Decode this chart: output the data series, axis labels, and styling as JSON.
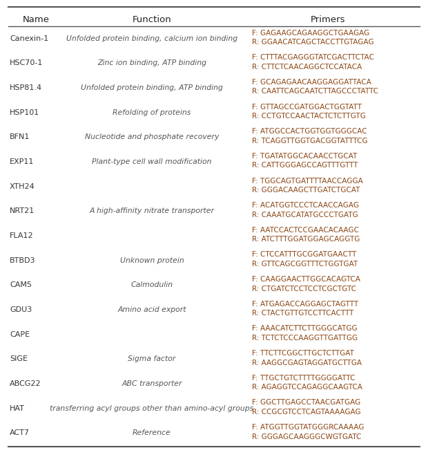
{
  "title_row": [
    "Name",
    "Function",
    "Primers"
  ],
  "rows": [
    {
      "name": "Canexin-1",
      "function": "Unfolded protein binding, calcium ion binding",
      "primers": [
        "F: GAGAAGCAGAAGGCTGAAGAG",
        "R: GGAACATCAGCTACCTTGTAGAG"
      ]
    },
    {
      "name": "HSC70-1",
      "function": "Zinc ion binding, ATP binding",
      "primers": [
        "F: CTTTACGAGGGTATCGACTTCTAC",
        "R: CTTCTCAACAGGCTCCATACA"
      ]
    },
    {
      "name": "HSP81.4",
      "function": "Unfolded protein binding, ATP binding",
      "primers": [
        "F: GCAGAGAACAAGGAGGATTACA",
        "R: CAATTCAGCAATCTTAGCCCTATTC"
      ]
    },
    {
      "name": "HSP101",
      "function": "Refolding of proteins",
      "primers": [
        "F: GTTAGCCGATGGACTGGTATT",
        "R: CCTGTCCAACTACTCTCTTGTG"
      ]
    },
    {
      "name": "BFN1",
      "function": "Nucleotide and phosphate recovery",
      "primers": [
        "F: ATGGCCACTGGTGGTGGGCAC",
        "R: TCAGGTTGGTGACGGTATTTCG"
      ]
    },
    {
      "name": "EXP11",
      "function": "Plant-type cell wall modification",
      "primers": [
        "F: TGATATGGCACAACCTGCAT",
        "R: CATTGGGAGCCAGTTTGTTT"
      ]
    },
    {
      "name": "XTH24",
      "function": "",
      "primers": [
        "F: TGGCAGTGATTTTAACCAGGA",
        "R: GGGACAAGCTTGATCTGCAT"
      ]
    },
    {
      "name": "NRT21",
      "function": "A high-affinity nitrate transporter",
      "primers": [
        "F: ACATGGTCCCTCAACCAGAG",
        "R: CAAATGCATATGCCCTGATG"
      ]
    },
    {
      "name": "FLA12",
      "function": "",
      "primers": [
        "F: AATCCACTCCGAACACAAGC",
        "R: ATCTTTGGATGGAGCAGGTG"
      ]
    },
    {
      "name": "BTBD3",
      "function": "Unknown protein",
      "primers": [
        "F: CTCCATTTGCGGATGAACTT",
        "R: GTTCAGCGGTTTCTGGTGAT"
      ]
    },
    {
      "name": "CAM5",
      "function": "Calmodulin",
      "primers": [
        "F: CAAGGAACTTGGCACAGTCA",
        "R: CTGATCTCCTCCTCGCTGTC"
      ]
    },
    {
      "name": "GDU3",
      "function": "Amino acid export",
      "primers": [
        "F: ATGAGACCAGGAGCTAGTTT",
        "R: CTACTGTTGTCCTTCACTTT"
      ]
    },
    {
      "name": "CAPE",
      "function": "",
      "primers": [
        "F: AAACATCTTCTTGGGCATGG",
        "R: TCTCTCCCAAGGTTGATTGG"
      ]
    },
    {
      "name": "SIGE",
      "function": "Sigma factor",
      "primers": [
        "F: TTCTTCGGCTTGCTCTTGAT",
        "R: AAGGCGAGTAGGATGCTTGA"
      ]
    },
    {
      "name": "ABCG22",
      "function": "ABC transporter",
      "primers": [
        "F: TTGCTGTCTTTTGGGGATTC",
        "R: AGAGGTCCAGAGGCAAGTCA"
      ]
    },
    {
      "name": "HAT",
      "function": "transferring acyl groups other than amino-acyl groups",
      "primers": [
        "F: GGCTTGAGCCTAACGATGAG",
        "R: CCGCGTCCTCAGTAAAAGAG"
      ]
    },
    {
      "name": "ACT7",
      "function": "Reference",
      "primers": [
        "F: ATGGTTGGTATGGGRCAAAAG",
        "R: GGGAGCAAGGGCWGTGATC"
      ]
    }
  ],
  "name_color": "#333333",
  "function_color": "#555555",
  "primer_color": "#8B4513",
  "header_color": "#222222",
  "line_color": "#555555",
  "bg_color": "#ffffff",
  "fig_width": 6.2,
  "fig_height": 6.74,
  "dpi": 100
}
